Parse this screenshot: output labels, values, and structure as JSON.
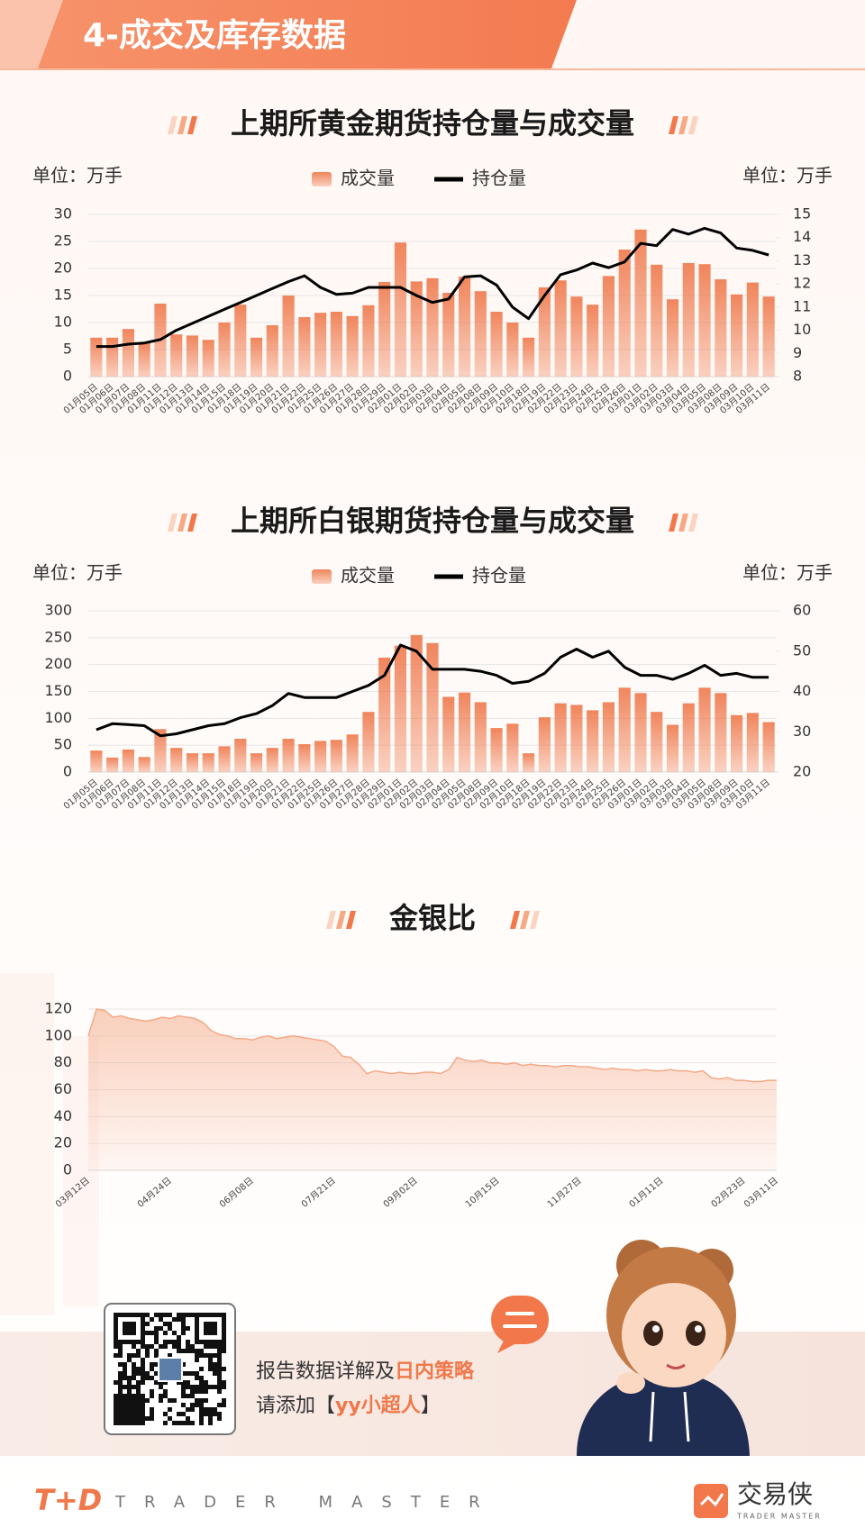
{
  "header": {
    "title": "4-成交及库存数据"
  },
  "chart_data": [
    {
      "type": "combo",
      "title": "上期所黄金期货持仓量与成交量",
      "y_unit_label": "单位：万手",
      "y2_unit_label": "单位：万手",
      "categories": [
        "01月05日",
        "01月06日",
        "01月07日",
        "01月08日",
        "01月11日",
        "01月12日",
        "01月13日",
        "01月14日",
        "01月15日",
        "01月18日",
        "01月19日",
        "01月20日",
        "01月21日",
        "01月22日",
        "01月25日",
        "01月26日",
        "01月27日",
        "01月28日",
        "01月29日",
        "02月01日",
        "02月02日",
        "02月03日",
        "02月04日",
        "02月05日",
        "02月08日",
        "02月09日",
        "02月10日",
        "02月18日",
        "02月19日",
        "02月22日",
        "02月23日",
        "02月24日",
        "02月25日",
        "02月26日",
        "03月01日",
        "03月02日",
        "03月03日",
        "03月04日",
        "03月05日",
        "03月08日",
        "03月09日",
        "03月10日",
        "03月11日"
      ],
      "series": [
        {
          "name": "成交量",
          "type": "bar",
          "color": "#f0855c",
          "values": [
            7.2,
            7.2,
            8.8,
            6.2,
            13.5,
            7.8,
            7.6,
            6.8,
            10,
            13.3,
            7.2,
            9.5,
            15,
            11,
            11.8,
            12,
            11.2,
            13.2,
            17.5,
            24.8,
            17.6,
            18.2,
            15.5,
            18.5,
            15.8,
            12,
            10,
            7.2,
            16.5,
            17.8,
            14.8,
            13.3,
            18.6,
            23.5,
            27.2,
            20.7,
            14.3,
            21,
            20.8,
            18,
            15.2,
            17.4,
            14.8
          ]
        },
        {
          "name": "持仓量",
          "type": "line",
          "axis": "y2",
          "color": "#000000",
          "values": [
            9.3,
            9.3,
            9.4,
            9.45,
            9.6,
            10.0,
            10.3,
            10.6,
            10.9,
            11.2,
            11.5,
            11.8,
            12.1,
            12.35,
            11.85,
            11.55,
            11.6,
            11.85,
            11.85,
            11.85,
            11.5,
            11.2,
            11.35,
            12.3,
            12.35,
            11.95,
            11.0,
            10.5,
            11.5,
            12.4,
            12.6,
            12.9,
            12.7,
            12.95,
            13.75,
            13.65,
            14.35,
            14.15,
            14.4,
            14.2,
            13.55,
            13.45,
            13.25
          ]
        }
      ],
      "ylim": [
        0,
        30
      ],
      "yticks": [
        0,
        5,
        10,
        15,
        20,
        25,
        30
      ],
      "y2lim": [
        8,
        15
      ],
      "y2ticks": [
        8,
        9,
        10,
        11,
        12,
        13,
        14,
        15
      ],
      "grid": true
    },
    {
      "type": "combo",
      "title": "上期所白银期货持仓量与成交量",
      "y_unit_label": "单位：万手",
      "y2_unit_label": "单位：万手",
      "categories": [
        "01月05日",
        "01月06日",
        "01月07日",
        "01月08日",
        "01月11日",
        "01月12日",
        "01月13日",
        "01月14日",
        "01月15日",
        "01月18日",
        "01月19日",
        "01月20日",
        "01月21日",
        "01月22日",
        "01月25日",
        "01月26日",
        "01月27日",
        "01月28日",
        "01月29日",
        "02月01日",
        "02月02日",
        "02月03日",
        "02月04日",
        "02月05日",
        "02月08日",
        "02月09日",
        "02月10日",
        "02月18日",
        "02月19日",
        "02月22日",
        "02月23日",
        "02月24日",
        "02月25日",
        "02月26日",
        "03月01日",
        "03月02日",
        "03月03日",
        "03月04日",
        "03月05日",
        "03月08日",
        "03月09日",
        "03月10日",
        "03月11日"
      ],
      "series": [
        {
          "name": "成交量",
          "type": "bar",
          "color": "#f0855c",
          "values": [
            40,
            27,
            42,
            28,
            80,
            45,
            35,
            35,
            48,
            62,
            35,
            45,
            62,
            52,
            58,
            60,
            70,
            112,
            213,
            235,
            255,
            240,
            140,
            148,
            130,
            82,
            90,
            35,
            102,
            128,
            125,
            115,
            130,
            157,
            147,
            112,
            88,
            128,
            157,
            147,
            106,
            110,
            93
          ]
        },
        {
          "name": "持仓量",
          "type": "line",
          "axis": "y2",
          "color": "#000000",
          "values": [
            30.5,
            32,
            31.8,
            31.5,
            29,
            29.5,
            30.5,
            31.5,
            32,
            33.5,
            34.5,
            36.5,
            39.5,
            38.5,
            38.5,
            38.5,
            40,
            41.5,
            44,
            51.5,
            50,
            45.5,
            45.5,
            45.5,
            45,
            44,
            42,
            42.5,
            44.5,
            48.5,
            50.5,
            48.5,
            50,
            46,
            44,
            44,
            43,
            44.5,
            46.5,
            44,
            44.5,
            43.5,
            43.5
          ]
        }
      ],
      "ylim": [
        0,
        300
      ],
      "yticks": [
        0,
        50,
        100,
        150,
        200,
        250,
        300
      ],
      "y2lim": [
        20,
        60
      ],
      "y2ticks": [
        20,
        30,
        40,
        50,
        60
      ],
      "grid": true
    },
    {
      "type": "area",
      "title": "金银比",
      "categories": [
        "03月12日",
        null,
        null,
        null,
        null,
        null,
        null,
        null,
        null,
        null,
        "04月24日",
        null,
        null,
        null,
        null,
        null,
        null,
        null,
        null,
        null,
        "06月08日",
        null,
        null,
        null,
        null,
        null,
        null,
        null,
        null,
        null,
        "07月21日",
        null,
        null,
        null,
        null,
        null,
        null,
        null,
        null,
        null,
        "09月02日",
        null,
        null,
        null,
        null,
        null,
        null,
        null,
        null,
        null,
        "10月15日",
        null,
        null,
        null,
        null,
        null,
        null,
        null,
        null,
        null,
        "11月27日",
        null,
        null,
        null,
        null,
        null,
        null,
        null,
        null,
        null,
        "01月11日",
        null,
        null,
        null,
        null,
        null,
        null,
        null,
        null,
        null,
        "02月23日",
        null,
        null,
        null,
        "03月11日"
      ],
      "values": [
        100,
        120,
        119,
        114,
        115,
        113,
        112,
        111,
        112,
        114,
        113,
        115,
        114,
        113,
        110,
        104,
        101,
        100,
        98,
        98,
        97,
        99,
        100,
        98,
        99,
        100,
        99,
        98,
        97,
        96,
        92,
        85,
        84,
        79,
        72,
        74,
        73,
        72,
        73,
        72,
        72,
        73,
        73,
        72,
        75,
        84,
        82,
        81,
        82,
        80,
        80,
        79,
        80,
        78,
        79,
        78,
        78,
        77,
        78,
        78,
        77,
        77,
        76,
        75,
        76,
        75,
        75,
        74,
        75,
        74,
        74,
        75,
        74,
        74,
        73,
        74,
        69,
        68,
        69,
        67,
        67,
        66,
        66,
        67,
        67
      ],
      "color": "#f5a987",
      "ylim": [
        0,
        120
      ],
      "yticks": [
        0,
        20,
        40,
        60,
        80,
        100,
        120
      ],
      "grid": true
    }
  ],
  "footer": {
    "promo_line1": "报告数据详解及",
    "promo_line1_highlight": "日内策略",
    "promo_line2": "请添加",
    "promo_line2_bracket_open": "【",
    "promo_line2_highlight": "yy小超人",
    "promo_line2_bracket_close": "】",
    "logo_left": "T+D",
    "logo_left_text": "TRADER MASTER",
    "logo_right": "交易侠",
    "logo_right_sub": "TRADER MASTER"
  }
}
